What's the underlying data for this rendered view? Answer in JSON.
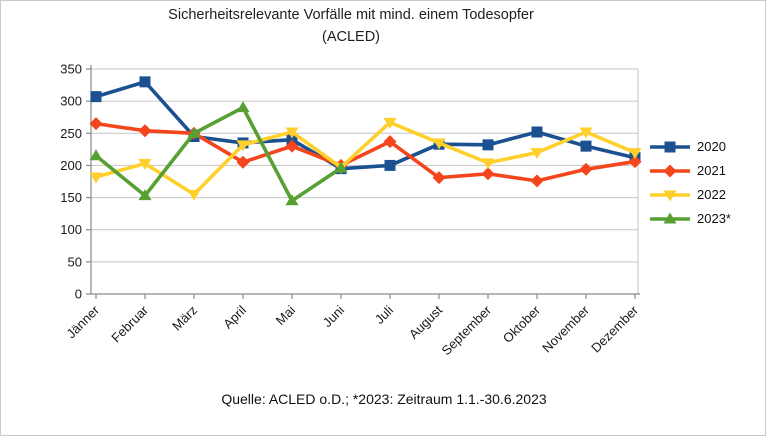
{
  "title": {
    "line1": "Sicherheitsrelevante Vorfälle mit mind. einem Todesopfer",
    "line2": "(ACLED)"
  },
  "caption": "Quelle: ACLED o.D.; *2023: Zeitraum 1.1.-30.6.2023",
  "colors": {
    "grid": "#c6c6c6",
    "axis": "#8a8a8a",
    "tick_text": "#1a1a1a",
    "background": "#ffffff",
    "frame_border": "#c9c9c9"
  },
  "chart_data": {
    "type": "line",
    "title": "Sicherheitsrelevante Vorfälle mit mind. einem Todesopfer (ACLED)",
    "categories": [
      "Jänner",
      "Februar",
      "März",
      "April",
      "Mai",
      "Juni",
      "Juli",
      "August",
      "September",
      "Oktober",
      "November",
      "Dezember"
    ],
    "series": [
      {
        "name": "2020",
        "color": "#1B5191",
        "marker": "square",
        "values": [
          307,
          330,
          245,
          235,
          240,
          195,
          200,
          233,
          232,
          252,
          230,
          212
        ]
      },
      {
        "name": "2021",
        "color": "#F4451C",
        "marker": "diamond",
        "values": [
          265,
          254,
          250,
          205,
          230,
          200,
          237,
          181,
          187,
          176,
          194,
          206
        ]
      },
      {
        "name": "2022",
        "color": "#FFD02B",
        "marker": "triangle-down",
        "values": [
          182,
          203,
          155,
          232,
          252,
          197,
          267,
          235,
          204,
          220,
          252,
          220
        ]
      },
      {
        "name": "2023*",
        "color": "#57A033",
        "marker": "triangle-up",
        "values": [
          215,
          153,
          250,
          290,
          145,
          196,
          null,
          null,
          null,
          null,
          null,
          null
        ]
      }
    ],
    "xlabel": "",
    "ylabel": "",
    "ylim": [
      0,
      350
    ],
    "ytick_step": 50,
    "grid": true,
    "legend_position": "right",
    "x_tick_rotation_deg": -45
  }
}
